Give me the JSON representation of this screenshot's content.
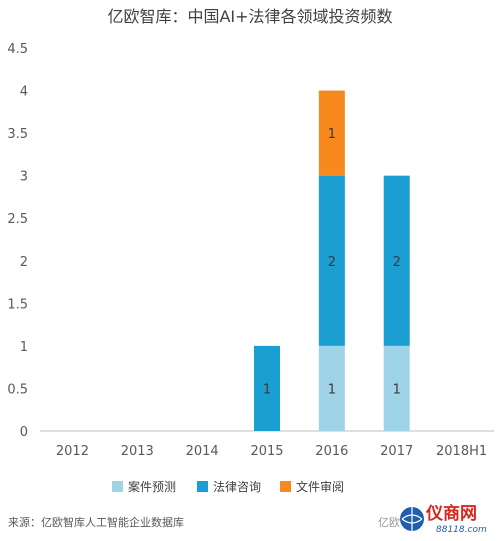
{
  "chart_data": {
    "type": "bar",
    "stacked": true,
    "title": "亿欧智库：中国AI+法律各领域投资频数",
    "categories": [
      "2012",
      "2013",
      "2014",
      "2015",
      "2016",
      "2017",
      "2018H1"
    ],
    "series": [
      {
        "name": "案件预测",
        "color": "#9fd3e8",
        "values": [
          0,
          0,
          0,
          0,
          1,
          1,
          0
        ]
      },
      {
        "name": "法律咨询",
        "color": "#1b9fd3",
        "values": [
          0,
          0,
          0,
          1,
          2,
          2,
          0
        ]
      },
      {
        "name": "文件审阅",
        "color": "#f7891f",
        "values": [
          0,
          0,
          0,
          0,
          1,
          0,
          0
        ]
      }
    ],
    "yticks": [
      "0",
      "0.5",
      "1",
      "1.5",
      "2",
      "2.5",
      "3",
      "3.5",
      "4",
      "4.5"
    ],
    "ylim": [
      0,
      4.5
    ],
    "grid": false,
    "legend_position": "bottom"
  },
  "footer": {
    "source": "来源：亿欧智库人工智能企业数据库",
    "watermark_tag": "亿欧",
    "watermark_brand": "仪商网",
    "watermark_url": "88118.com"
  }
}
